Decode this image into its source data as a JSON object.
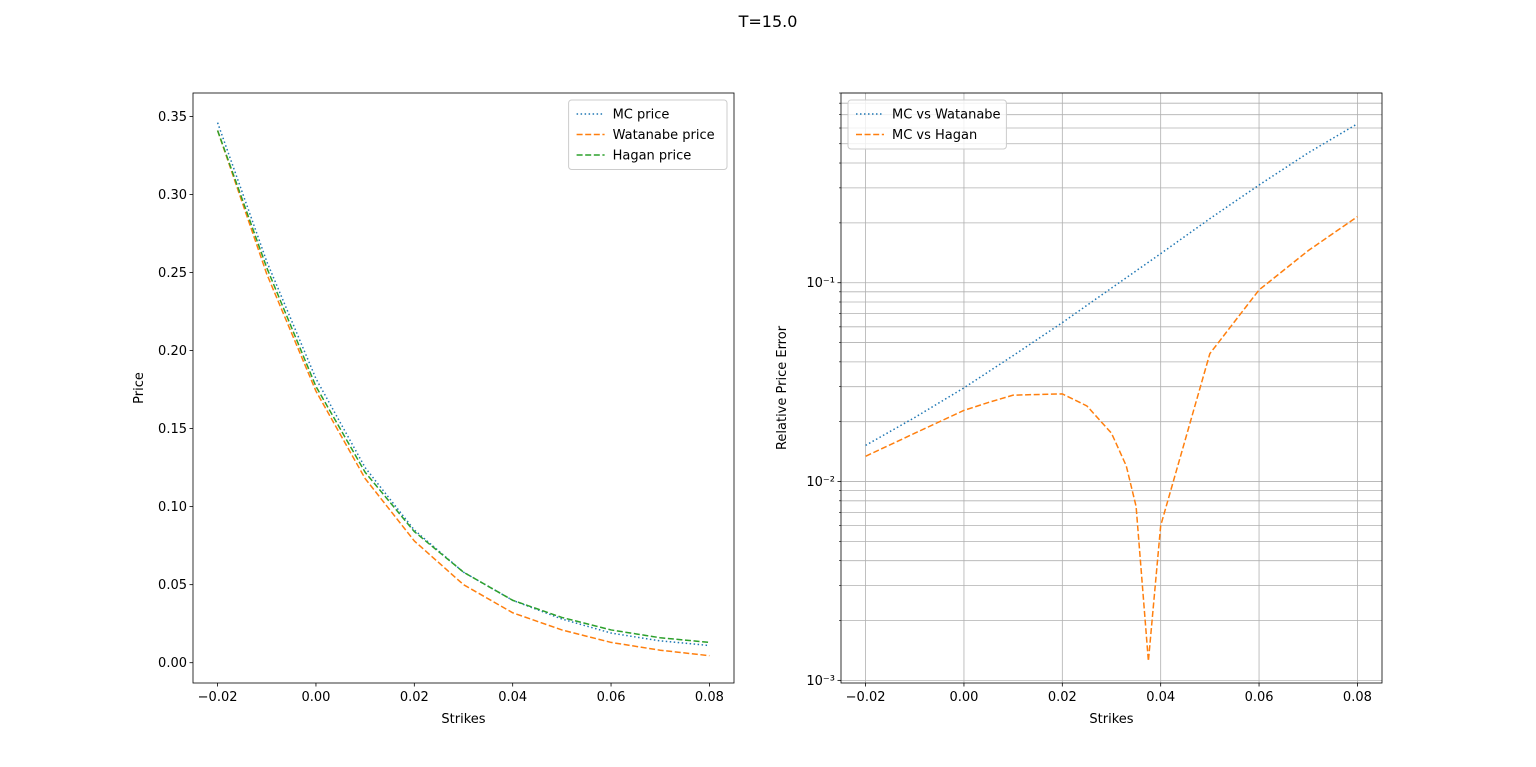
{
  "suptitle": "T=15.0",
  "chart_data": [
    {
      "type": "line",
      "title": "",
      "xlabel": "Strikes",
      "ylabel": "Price",
      "xlim": [
        -0.025,
        0.085
      ],
      "ylim": [
        -0.013,
        0.365
      ],
      "xticks": [
        -0.02,
        0.0,
        0.02,
        0.04,
        0.06,
        0.08
      ],
      "xtick_labels": [
        "−0.02",
        "0.00",
        "0.02",
        "0.04",
        "0.06",
        "0.08"
      ],
      "yticks": [
        0.0,
        0.05,
        0.1,
        0.15,
        0.2,
        0.25,
        0.3,
        0.35
      ],
      "ytick_labels": [
        "0.00",
        "0.05",
        "0.10",
        "0.15",
        "0.20",
        "0.25",
        "0.30",
        "0.35"
      ],
      "grid": false,
      "legend": "top-right",
      "x": [
        -0.02,
        -0.01,
        0.0,
        0.01,
        0.02,
        0.03,
        0.04,
        0.05,
        0.06,
        0.07,
        0.08
      ],
      "series": [
        {
          "name": "MC price",
          "style": "dotted",
          "color": "#1f77b4",
          "values": [
            0.346,
            0.257,
            0.182,
            0.125,
            0.085,
            0.058,
            0.04,
            0.028,
            0.019,
            0.014,
            0.011
          ]
        },
        {
          "name": "Watanabe price",
          "style": "dashed",
          "color": "#ff7f0e",
          "values": [
            0.341,
            0.249,
            0.174,
            0.118,
            0.078,
            0.05,
            0.032,
            0.021,
            0.013,
            0.008,
            0.0045
          ]
        },
        {
          "name": "Hagan price",
          "style": "dashed",
          "color": "#2ca02c",
          "values": [
            0.341,
            0.253,
            0.177,
            0.122,
            0.084,
            0.058,
            0.04,
            0.029,
            0.021,
            0.016,
            0.013
          ]
        }
      ]
    },
    {
      "type": "line",
      "title": "",
      "xlabel": "Strikes",
      "ylabel": "Relative Price Error",
      "yscale": "log",
      "xlim": [
        -0.025,
        0.085
      ],
      "ylim": [
        0.00097,
        0.9
      ],
      "xticks": [
        -0.02,
        0.0,
        0.02,
        0.04,
        0.06,
        0.08
      ],
      "xtick_labels": [
        "−0.02",
        "0.00",
        "0.02",
        "0.04",
        "0.06",
        "0.08"
      ],
      "yticks": [
        0.001,
        0.01,
        0.1
      ],
      "ytick_labels": [
        "10⁻³",
        "10⁻²",
        "10⁻¹"
      ],
      "grid": true,
      "legend": "top-left",
      "series": [
        {
          "name": "MC vs Watanabe",
          "style": "dotted",
          "color": "#1f77b4",
          "x": [
            -0.02,
            -0.01,
            0.0,
            0.01,
            0.02,
            0.03,
            0.04,
            0.05,
            0.06,
            0.07,
            0.08
          ],
          "values": [
            0.0152,
            0.021,
            0.0296,
            0.043,
            0.063,
            0.094,
            0.14,
            0.21,
            0.31,
            0.45,
            0.63
          ]
        },
        {
          "name": "MC vs Hagan",
          "style": "dashed",
          "color": "#ff7f0e",
          "x": [
            -0.02,
            -0.01,
            0.0,
            0.005,
            0.01,
            0.02,
            0.025,
            0.03,
            0.033,
            0.035,
            0.0375,
            0.04,
            0.05,
            0.06,
            0.07,
            0.08
          ],
          "values": [
            0.0134,
            0.0175,
            0.0228,
            0.025,
            0.0272,
            0.0276,
            0.024,
            0.0175,
            0.012,
            0.0075,
            0.00125,
            0.006,
            0.044,
            0.092,
            0.145,
            0.215
          ]
        }
      ]
    }
  ]
}
